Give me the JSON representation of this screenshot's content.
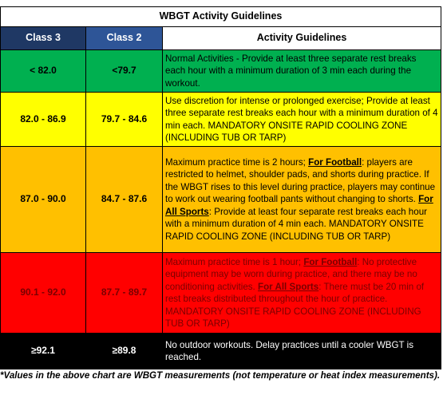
{
  "title": "WBGT Activity Guidelines",
  "table": {
    "headers": [
      "Class 3",
      "Class 2",
      "Activity Guidelines"
    ],
    "rows": [
      {
        "class3": "< 82.0",
        "class2": "<79.7",
        "fill": "#00b050",
        "text_color": "#000000",
        "guideline": [
          {
            "text": "Normal Activities - Provide at least three separate rest breaks each hour with a minimum duration of 3 min each during the workout."
          }
        ]
      },
      {
        "class3": "82.0 - 86.9",
        "class2": "79.7 - 84.6",
        "fill": "#ffff00",
        "text_color": "#000000",
        "guideline": [
          {
            "text": "Use discretion for intense or prolonged exercise; Provide at least three separate rest breaks each hour with a minimum duration of 4 min each. MANDATORY ONSITE RAPID COOLING ZONE (INCLUDING TUB OR TARP)"
          }
        ]
      },
      {
        "class3": "87.0 - 90.0",
        "class2": "84.7 - 87.6",
        "fill": "#ffc000",
        "text_color": "#000000",
        "guideline": [
          {
            "text": "Maximum practice time is 2 hours; "
          },
          {
            "text": "For Football",
            "emphasis": true
          },
          {
            "text": ": players are restricted to helmet, shoulder pads, and shorts during practice. If the WBGT rises to this level during practice, players may continue to work out wearing football pants without changing to shorts. "
          },
          {
            "text": "For All Sports",
            "emphasis": true
          },
          {
            "text": ": Provide at least four separate rest breaks each hour with a minimum duration of 4 min each. MANDATORY ONSITE RAPID COOLING ZONE (INCLUDING TUB OR TARP)"
          }
        ]
      },
      {
        "class3": "90.1 - 92.0",
        "class2": "87.7 - 89.7",
        "fill": "#ff0000",
        "text_color": "#7a0000",
        "guideline": [
          {
            "text": "Maximum practice time is 1 hour; "
          },
          {
            "text": "For Football",
            "emphasis": true
          },
          {
            "text": ": No protective equipment may be worn during practice, and there may be no conditioning activities. "
          },
          {
            "text": "For All Sports",
            "emphasis": true
          },
          {
            "text": ": There must be 20 min of rest breaks distributed throughout the hour of practice. MANDATORY ONSITE RAPID COOLING ZONE (INCLUDING TUB OR TARP)"
          }
        ]
      },
      {
        "class3": "≥92.1",
        "class2": "≥89.8",
        "fill": "#000000",
        "text_color": "#ffffff",
        "guideline": [
          {
            "text": "No outdoor workouts. Delay practices until a cooler WBGT is reached."
          }
        ]
      }
    ]
  },
  "footnote": "*Values in the above chart are WBGT measurements (not temperature or heat index measurements)."
}
